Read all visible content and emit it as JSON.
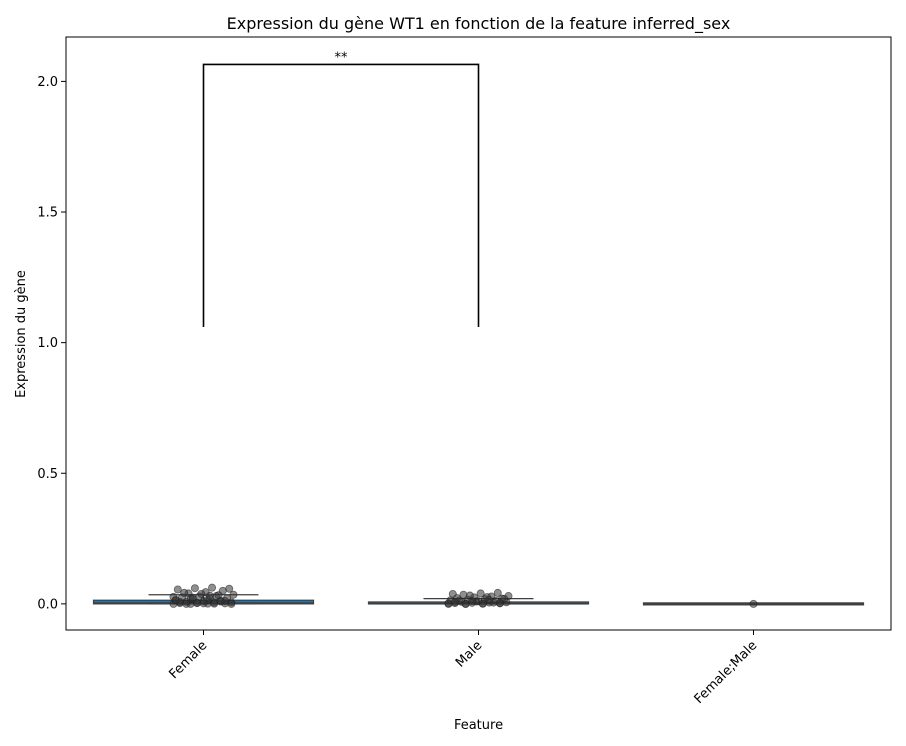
{
  "chart_data": {
    "type": "box",
    "title": "Expression du gène WT1 en fonction de la feature inferred_sex",
    "xlabel": "Feature",
    "ylabel": "Expression du gène",
    "categories": [
      "Female",
      "Male",
      "Female;Male"
    ],
    "ylim": [
      -0.1,
      2.17
    ],
    "yticks": [
      0.0,
      0.5,
      1.0,
      1.5,
      2.0
    ],
    "ytick_labels": [
      "0.0",
      "0.5",
      "1.0",
      "1.5",
      "2.0"
    ],
    "grid": false,
    "box_color": "#1f77b4",
    "point_color": "#333333",
    "boxes": [
      {
        "category": "Female",
        "whisker_low": 0.0,
        "q1": 0.0,
        "median": 0.004,
        "q3": 0.014,
        "whisker_high": 0.035,
        "points": [
          0.0,
          0.0,
          0.001,
          0.002,
          0.003,
          0.004,
          0.005,
          0.006,
          0.008,
          0.01,
          0.012,
          0.015,
          0.018,
          0.02,
          0.022,
          0.025,
          0.028,
          0.03,
          0.035,
          0.04,
          0.045,
          0.05,
          0.055,
          0.06,
          0.062,
          0.058,
          0.042,
          0.038,
          0.033,
          0.027,
          0.021,
          0.016,
          0.011,
          0.007,
          0.003,
          0.001,
          0.0,
          0.0,
          0.002,
          0.009,
          0.013,
          0.024,
          0.031
        ]
      },
      {
        "category": "Male",
        "whisker_low": 0.0,
        "q1": 0.0,
        "median": 0.002,
        "q3": 0.007,
        "whisker_high": 0.02,
        "points": [
          0.0,
          0.0,
          0.001,
          0.002,
          0.003,
          0.004,
          0.005,
          0.006,
          0.008,
          0.01,
          0.012,
          0.014,
          0.016,
          0.018,
          0.02,
          0.022,
          0.025,
          0.028,
          0.03,
          0.035,
          0.04,
          0.042,
          0.038,
          0.032,
          0.026,
          0.019,
          0.013,
          0.009,
          0.005,
          0.002,
          0.0,
          0.001,
          0.003,
          0.007,
          0.011,
          0.015
        ]
      },
      {
        "category": "Female;Male",
        "whisker_low": 0.0,
        "q1": 0.0,
        "median": 0.0,
        "q3": 0.0,
        "whisker_high": 0.0,
        "points": [
          0.0
        ]
      }
    ],
    "annotations": [
      {
        "from": "Female",
        "to": "Male",
        "y_bottom": 1.06,
        "y_top": 2.065,
        "text": "**"
      }
    ]
  }
}
